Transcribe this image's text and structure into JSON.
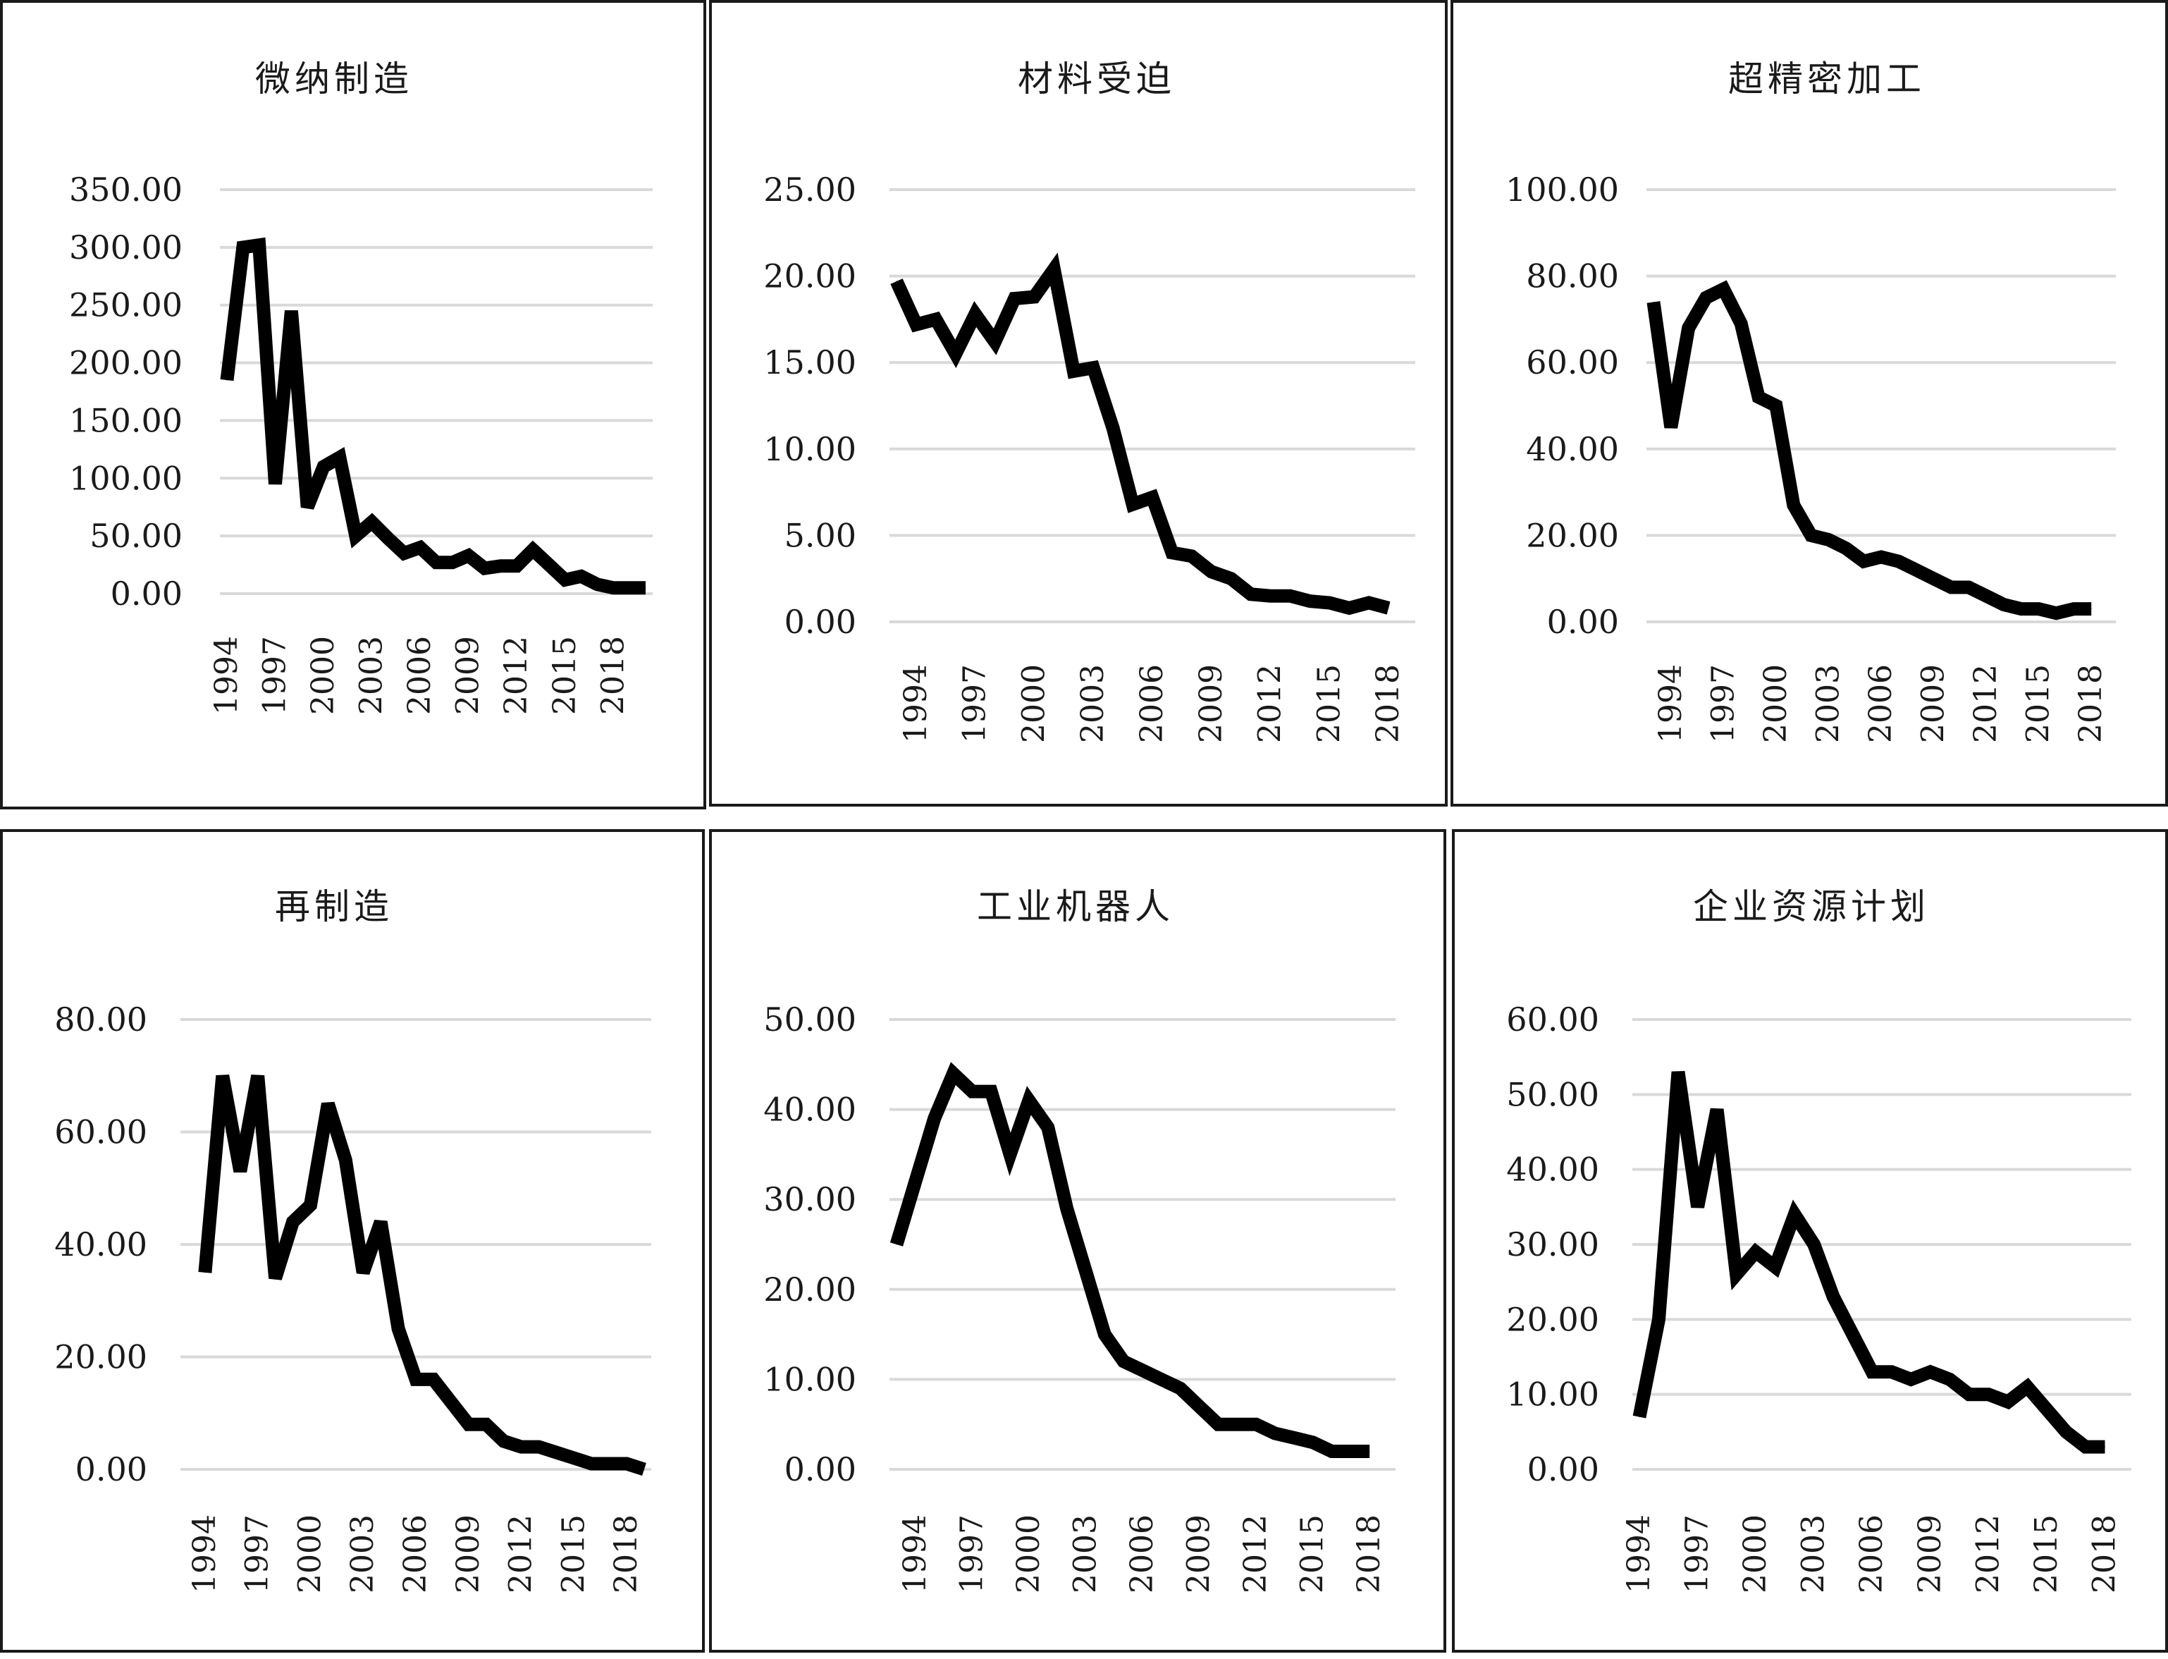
{
  "chart_data": [
    {
      "type": "line",
      "title": "微纳制造",
      "ylim": [
        0,
        350
      ],
      "yticks": [
        "0.00",
        "50.00",
        "100.00",
        "150.00",
        "200.00",
        "250.00",
        "300.00",
        "350.00"
      ],
      "xticks": [
        "1994",
        "1997",
        "2000",
        "2003",
        "2006",
        "2009",
        "2012",
        "2015",
        "2018"
      ],
      "x": [
        1994,
        1995,
        1996,
        1997,
        1998,
        1999,
        2000,
        2001,
        2002,
        2003,
        2004,
        2005,
        2006,
        2007,
        2008,
        2009,
        2010,
        2011,
        2012,
        2013,
        2014,
        2015,
        2016,
        2017,
        2018,
        2019,
        2020
      ],
      "series": [
        {
          "values": [
            185,
            300,
            302,
            95,
            245,
            75,
            110,
            118,
            50,
            62,
            48,
            35,
            40,
            27,
            27,
            33,
            22,
            24,
            24,
            38,
            25,
            12,
            15,
            8,
            5,
            5,
            5
          ]
        }
      ],
      "grid": true,
      "legend": "none"
    },
    {
      "type": "line",
      "title": "材料受迫",
      "ylim": [
        0,
        25
      ],
      "yticks": [
        "0.00",
        "5.00",
        "10.00",
        "15.00",
        "20.00",
        "25.00"
      ],
      "xticks": [
        "1994",
        "1997",
        "2000",
        "2003",
        "2006",
        "2009",
        "2012",
        "2015",
        "2018"
      ],
      "x": [
        1993,
        1994,
        1995,
        1996,
        1997,
        1998,
        1999,
        2000,
        2001,
        2002,
        2003,
        2004,
        2005,
        2006,
        2007,
        2008,
        2009,
        2010,
        2011,
        2012,
        2013,
        2014,
        2015,
        2016,
        2017,
        2018
      ],
      "series": [
        {
          "values": [
            19.7,
            17.2,
            17.5,
            15.5,
            17.8,
            16.2,
            18.7,
            18.8,
            20.4,
            14.5,
            14.7,
            11.2,
            6.8,
            7.2,
            4,
            3.8,
            2.9,
            2.5,
            1.6,
            1.5,
            1.5,
            1.2,
            1.1,
            0.8,
            1.1,
            0.8
          ]
        }
      ],
      "grid": true,
      "legend": "none"
    },
    {
      "type": "line",
      "title": "超精密加工",
      "ylim": [
        0,
        100
      ],
      "yticks": [
        "0.00",
        "20.00",
        "40.00",
        "60.00",
        "80.00",
        "100.00"
      ],
      "xticks": [
        "1994",
        "1997",
        "2000",
        "2003",
        "2006",
        "2009",
        "2012",
        "2015",
        "2018"
      ],
      "x": [
        1993,
        1994,
        1995,
        1996,
        1997,
        1998,
        1999,
        2000,
        2001,
        2002,
        2003,
        2004,
        2005,
        2006,
        2007,
        2008,
        2009,
        2010,
        2011,
        2012,
        2013,
        2014,
        2015,
        2016,
        2017,
        2018
      ],
      "series": [
        {
          "values": [
            74,
            45,
            68,
            75,
            77,
            69,
            52,
            50,
            27,
            20,
            19,
            17,
            14,
            15,
            14,
            12,
            10,
            8,
            8,
            6,
            4,
            3,
            3,
            2,
            3,
            3
          ]
        }
      ],
      "grid": true,
      "legend": "none"
    },
    {
      "type": "line",
      "title": "再制造",
      "ylim": [
        0,
        80
      ],
      "yticks": [
        "0.00",
        "20.00",
        "40.00",
        "60.00",
        "80.00"
      ],
      "xticks": [
        "1994",
        "1997",
        "2000",
        "2003",
        "2006",
        "2009",
        "2012",
        "2015",
        "2018"
      ],
      "x": [
        1994,
        1995,
        1996,
        1997,
        1998,
        1999,
        2000,
        2001,
        2002,
        2003,
        2004,
        2005,
        2006,
        2007,
        2008,
        2009,
        2010,
        2011,
        2012,
        2013,
        2014,
        2015,
        2016,
        2017,
        2018,
        2019
      ],
      "series": [
        {
          "values": [
            35,
            70,
            53,
            70,
            34,
            44,
            47,
            65,
            55,
            35,
            44,
            25,
            16,
            16,
            12,
            8,
            8,
            5,
            4,
            4,
            3,
            2,
            1,
            1,
            1,
            0
          ]
        }
      ],
      "grid": true,
      "legend": "none"
    },
    {
      "type": "line",
      "title": "工业机器人",
      "ylim": [
        0,
        50
      ],
      "yticks": [
        "0.00",
        "10.00",
        "20.00",
        "30.00",
        "40.00",
        "50.00"
      ],
      "xticks": [
        "1994",
        "1997",
        "2000",
        "2003",
        "2006",
        "2009",
        "2012",
        "2015",
        "2018"
      ],
      "x": [
        1993,
        1994,
        1995,
        1996,
        1997,
        1998,
        1999,
        2000,
        2001,
        2002,
        2003,
        2004,
        2005,
        2006,
        2007,
        2008,
        2009,
        2010,
        2011,
        2012,
        2013,
        2014,
        2015,
        2016,
        2017,
        2018
      ],
      "series": [
        {
          "values": [
            25,
            32,
            39,
            44,
            42,
            42,
            35,
            41,
            38,
            29,
            22,
            15,
            12,
            11,
            10,
            9,
            7,
            5,
            5,
            5,
            4,
            3.5,
            3,
            2,
            2,
            2
          ]
        }
      ],
      "grid": true,
      "legend": "none"
    },
    {
      "type": "line",
      "title": "企业资源计划",
      "ylim": [
        0,
        60
      ],
      "yticks": [
        "0.00",
        "10.00",
        "20.00",
        "30.00",
        "40.00",
        "50.00",
        "60.00"
      ],
      "xticks": [
        "1994",
        "1997",
        "2000",
        "2003",
        "2006",
        "2009",
        "2012",
        "2015",
        "2018"
      ],
      "x": [
        1994,
        1995,
        1996,
        1997,
        1998,
        1999,
        2000,
        2001,
        2002,
        2003,
        2004,
        2005,
        2006,
        2007,
        2008,
        2009,
        2010,
        2011,
        2012,
        2013,
        2014,
        2015,
        2016,
        2017,
        2018
      ],
      "series": [
        {
          "values": [
            7,
            20,
            53,
            35,
            48,
            26,
            29,
            27,
            34,
            30,
            23,
            18,
            13,
            13,
            12,
            13,
            12,
            10,
            10,
            9,
            11,
            8,
            5,
            3,
            3
          ]
        }
      ],
      "grid": true,
      "legend": "none"
    }
  ]
}
